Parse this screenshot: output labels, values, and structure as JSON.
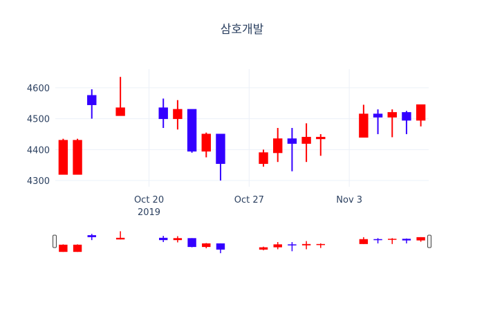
{
  "chart_data": {
    "type": "candlestick",
    "title": "삼호개발",
    "ylim": [
      4280,
      4660
    ],
    "y_ticks": [
      4300,
      4400,
      4500,
      4600
    ],
    "y_tick_labels": [
      "4300",
      "4400",
      "4500",
      "4600"
    ],
    "x_ticks": [
      {
        "date": "2019-10-20",
        "label": "Oct 20",
        "sublabel": "2019"
      },
      {
        "date": "2019-10-27",
        "label": "Oct 27",
        "sublabel": ""
      },
      {
        "date": "2019-11-03",
        "label": "Nov 3",
        "sublabel": ""
      }
    ],
    "x_range": [
      "2019-10-14",
      "2019-11-08"
    ],
    "increasing_color": "#ff0000",
    "decreasing_color": "#3300ff",
    "rangeslider": true,
    "series": [
      {
        "date": "2019-10-14",
        "open": 4320,
        "high": 4435,
        "low": 4320,
        "close": 4430
      },
      {
        "date": "2019-10-15",
        "open": 4320,
        "high": 4435,
        "low": 4320,
        "close": 4430
      },
      {
        "date": "2019-10-16",
        "open": 4575,
        "high": 4595,
        "low": 4500,
        "close": 4545
      },
      {
        "date": "2019-10-18",
        "open": 4510,
        "high": 4635,
        "low": 4510,
        "close": 4535
      },
      {
        "date": "2019-10-21",
        "open": 4535,
        "high": 4565,
        "low": 4470,
        "close": 4500
      },
      {
        "date": "2019-10-22",
        "open": 4500,
        "high": 4560,
        "low": 4465,
        "close": 4530
      },
      {
        "date": "2019-10-23",
        "open": 4530,
        "high": 4530,
        "low": 4390,
        "close": 4395
      },
      {
        "date": "2019-10-24",
        "open": 4395,
        "high": 4455,
        "low": 4375,
        "close": 4450
      },
      {
        "date": "2019-10-25",
        "open": 4450,
        "high": 4450,
        "low": 4300,
        "close": 4355
      },
      {
        "date": "2019-10-28",
        "open": 4355,
        "high": 4400,
        "low": 4345,
        "close": 4390
      },
      {
        "date": "2019-10-29",
        "open": 4390,
        "high": 4470,
        "low": 4360,
        "close": 4435
      },
      {
        "date": "2019-10-30",
        "open": 4435,
        "high": 4470,
        "low": 4330,
        "close": 4420
      },
      {
        "date": "2019-10-31",
        "open": 4420,
        "high": 4485,
        "low": 4360,
        "close": 4440
      },
      {
        "date": "2019-11-01",
        "open": 4435,
        "high": 4450,
        "low": 4380,
        "close": 4440
      },
      {
        "date": "2019-11-04",
        "open": 4440,
        "high": 4545,
        "low": 4440,
        "close": 4515
      },
      {
        "date": "2019-11-05",
        "open": 4515,
        "high": 4530,
        "low": 4450,
        "close": 4505
      },
      {
        "date": "2019-11-06",
        "open": 4505,
        "high": 4530,
        "low": 4440,
        "close": 4520
      },
      {
        "date": "2019-11-07",
        "open": 4520,
        "high": 4525,
        "low": 4450,
        "close": 4495
      },
      {
        "date": "2019-11-08",
        "open": 4495,
        "high": 4545,
        "low": 4475,
        "close": 4545
      }
    ]
  }
}
